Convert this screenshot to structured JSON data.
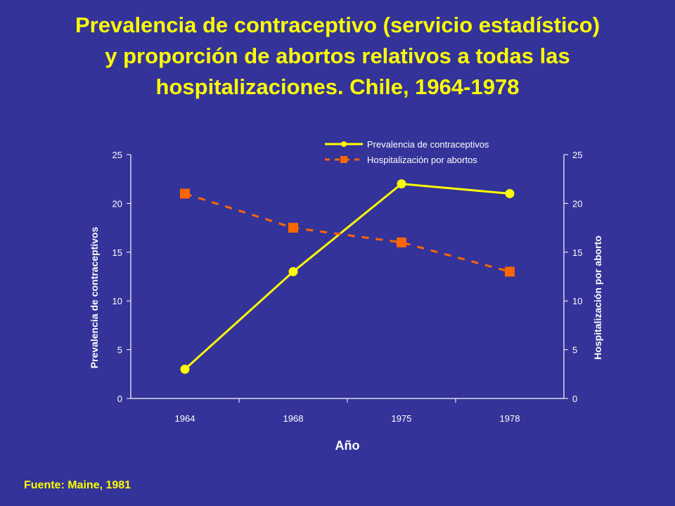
{
  "slide": {
    "title_lines": [
      "Prevalencia de contraceptivo (servicio estadístico)",
      "y proporción de abortos relativos a todas las",
      "hospitalizaciones. Chile, 1964-1978"
    ],
    "source": "Fuente: Maine, 1981"
  },
  "chart_data": {
    "type": "line",
    "categories": [
      "1964",
      "1968",
      "1975",
      "1978"
    ],
    "xlabel": "Año",
    "ylabel_left": "Prevalencia de contraceptivos",
    "ylabel_right": "Hospitalización por aborto",
    "ylim": [
      0,
      25
    ],
    "yticks": [
      "0",
      "5",
      "10",
      "15",
      "20",
      "25"
    ],
    "legend_position": "top",
    "grid": false,
    "series": [
      {
        "name": "Prevalencia de contraceptivos",
        "values": [
          3,
          13,
          22,
          21
        ],
        "axis": "left",
        "color": "#FFFF00",
        "style": "solid",
        "marker": "circle"
      },
      {
        "name": "Hospitalización por abortos",
        "values": [
          21,
          17.5,
          16,
          13
        ],
        "axis": "right",
        "color": "#FF6600",
        "style": "dashed",
        "marker": "square"
      }
    ]
  }
}
